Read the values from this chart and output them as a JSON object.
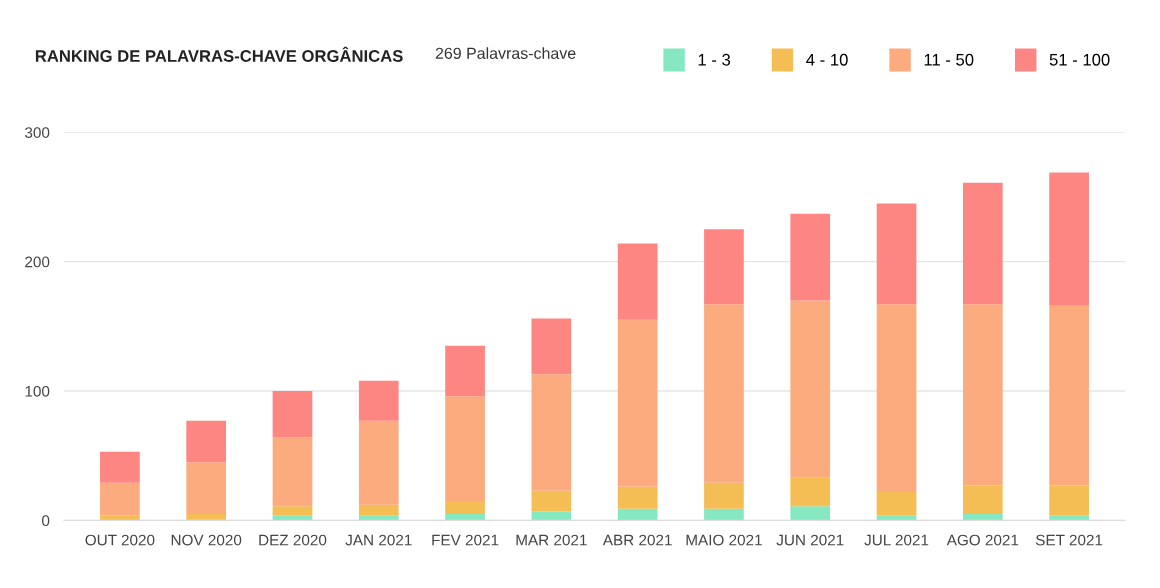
{
  "chart_data": {
    "type": "bar",
    "title": "RANKING DE PALAVRAS-CHAVE ORGÂNICAS",
    "subtitle": "269 Palavras-chave",
    "categories": [
      "OUT 2020",
      "NOV 2020",
      "DEZ 2020",
      "JAN 2021",
      "FEV 2021",
      "MAR 2021",
      "ABR 2021",
      "MAIO 2021",
      "JUN 2021",
      "JUL 2021",
      "AGO 2021",
      "SET 2021"
    ],
    "stacked": true,
    "series": [
      {
        "name": "1 - 3",
        "color": "#86e8c0",
        "values": [
          0,
          1,
          4,
          4,
          5,
          7,
          9,
          9,
          11,
          4,
          5,
          4
        ]
      },
      {
        "name": "4 - 10",
        "color": "#f5be55",
        "values": [
          4,
          4,
          7,
          8,
          10,
          16,
          17,
          20,
          22,
          18,
          22,
          23
        ]
      },
      {
        "name": "11 - 50",
        "color": "#fcab7e",
        "values": [
          25,
          40,
          53,
          65,
          81,
          90,
          129,
          138,
          137,
          145,
          140,
          139
        ]
      },
      {
        "name": "51 - 100",
        "color": "#fd8582",
        "values": [
          24,
          32,
          36,
          31,
          39,
          43,
          59,
          58,
          67,
          78,
          94,
          103
        ]
      }
    ],
    "ylim": [
      0,
      300
    ],
    "yticks": [
      0,
      100,
      200,
      300
    ],
    "grid": "y",
    "legend": "top right"
  }
}
